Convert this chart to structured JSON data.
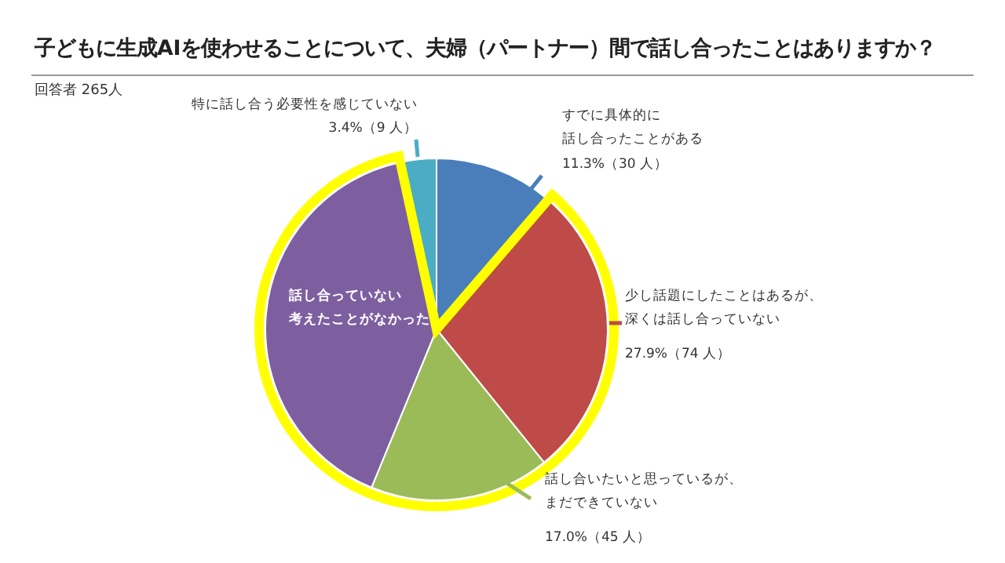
{
  "chart_data": {
    "type": "pie",
    "title": "子どもに生成AIを使わせることについて、夫婦（パートナー）間で話し合ったことはありますか？",
    "subtitle": "回答者 265人",
    "categories": [
      "すでに具体的に話し合ったことがある",
      "少し話題にしたことはあるが、深くは話し合っていない",
      "話し合いたいと思っているが、まだできていない",
      "話し合っていない考えたことがなかった",
      "特に話し合う必要性を感じていない"
    ],
    "values": [
      11.3,
      27.9,
      17.0,
      40.4,
      3.4
    ],
    "value_labels": [
      "11.3%（30 人）",
      "27.9%（74 人）",
      "17.0%（45 人）",
      null,
      "3.4%（9 人）"
    ],
    "colors": [
      "#4a7ebb",
      "#be4b48",
      "#9bbb59",
      "#7d5fa0",
      "#4bacc6"
    ]
  }
}
